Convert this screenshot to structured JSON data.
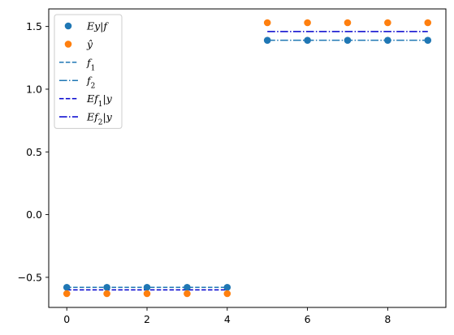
{
  "chart_data": {
    "type": "line",
    "title": "",
    "xlabel": "",
    "ylabel": "",
    "xlim": [
      -0.45,
      9.45
    ],
    "ylim": [
      -0.74,
      1.64
    ],
    "xticks": [
      0,
      2,
      4,
      6,
      8
    ],
    "yticks": [
      -0.5,
      0.0,
      0.5,
      1.0,
      1.5
    ],
    "xtick_labels": [
      "0",
      "2",
      "4",
      "6",
      "8"
    ],
    "ytick_labels": [
      "−0.5",
      "0.0",
      "0.5",
      "1.0",
      "1.5"
    ],
    "grid": false,
    "legend_position": "top-left",
    "series": [
      {
        "key": "ey_given_f",
        "name": "Ey|f",
        "kind": "scatter",
        "color": "#1f77b4",
        "x": [
          0,
          1,
          2,
          3,
          4,
          5,
          6,
          7,
          8,
          9
        ],
        "y": [
          -0.58,
          -0.58,
          -0.58,
          -0.58,
          -0.58,
          1.39,
          1.39,
          1.39,
          1.39,
          1.39
        ]
      },
      {
        "key": "y_hat",
        "name": "ŷ",
        "kind": "scatter",
        "color": "#ff7f0e",
        "x": [
          0,
          1,
          2,
          3,
          4,
          5,
          6,
          7,
          8,
          9
        ],
        "y": [
          -0.63,
          -0.63,
          -0.63,
          -0.63,
          -0.63,
          1.53,
          1.53,
          1.53,
          1.53,
          1.53
        ]
      },
      {
        "key": "f1",
        "name": "f1",
        "kind": "line",
        "dash": "dashed",
        "color": "#1f77b4",
        "x": [
          0,
          1,
          2,
          3,
          4
        ],
        "y": [
          -0.58,
          -0.58,
          -0.58,
          -0.58,
          -0.58
        ]
      },
      {
        "key": "f2",
        "name": "f2",
        "kind": "line",
        "dash": "dashdot",
        "color": "#1f77b4",
        "x": [
          5,
          6,
          7,
          8,
          9
        ],
        "y": [
          1.39,
          1.39,
          1.39,
          1.39,
          1.39
        ]
      },
      {
        "key": "ef1_given_y",
        "name": "Ef1|y",
        "kind": "line",
        "dash": "dashed",
        "color": "#0000cd",
        "x": [
          0,
          1,
          2,
          3,
          4
        ],
        "y": [
          -0.6,
          -0.6,
          -0.6,
          -0.6,
          -0.6
        ]
      },
      {
        "key": "ef2_given_y",
        "name": "Ef2|y",
        "kind": "line",
        "dash": "dashdot",
        "color": "#0000cd",
        "x": [
          5,
          6,
          7,
          8,
          9
        ],
        "y": [
          1.46,
          1.46,
          1.46,
          1.46,
          1.46
        ]
      }
    ]
  }
}
